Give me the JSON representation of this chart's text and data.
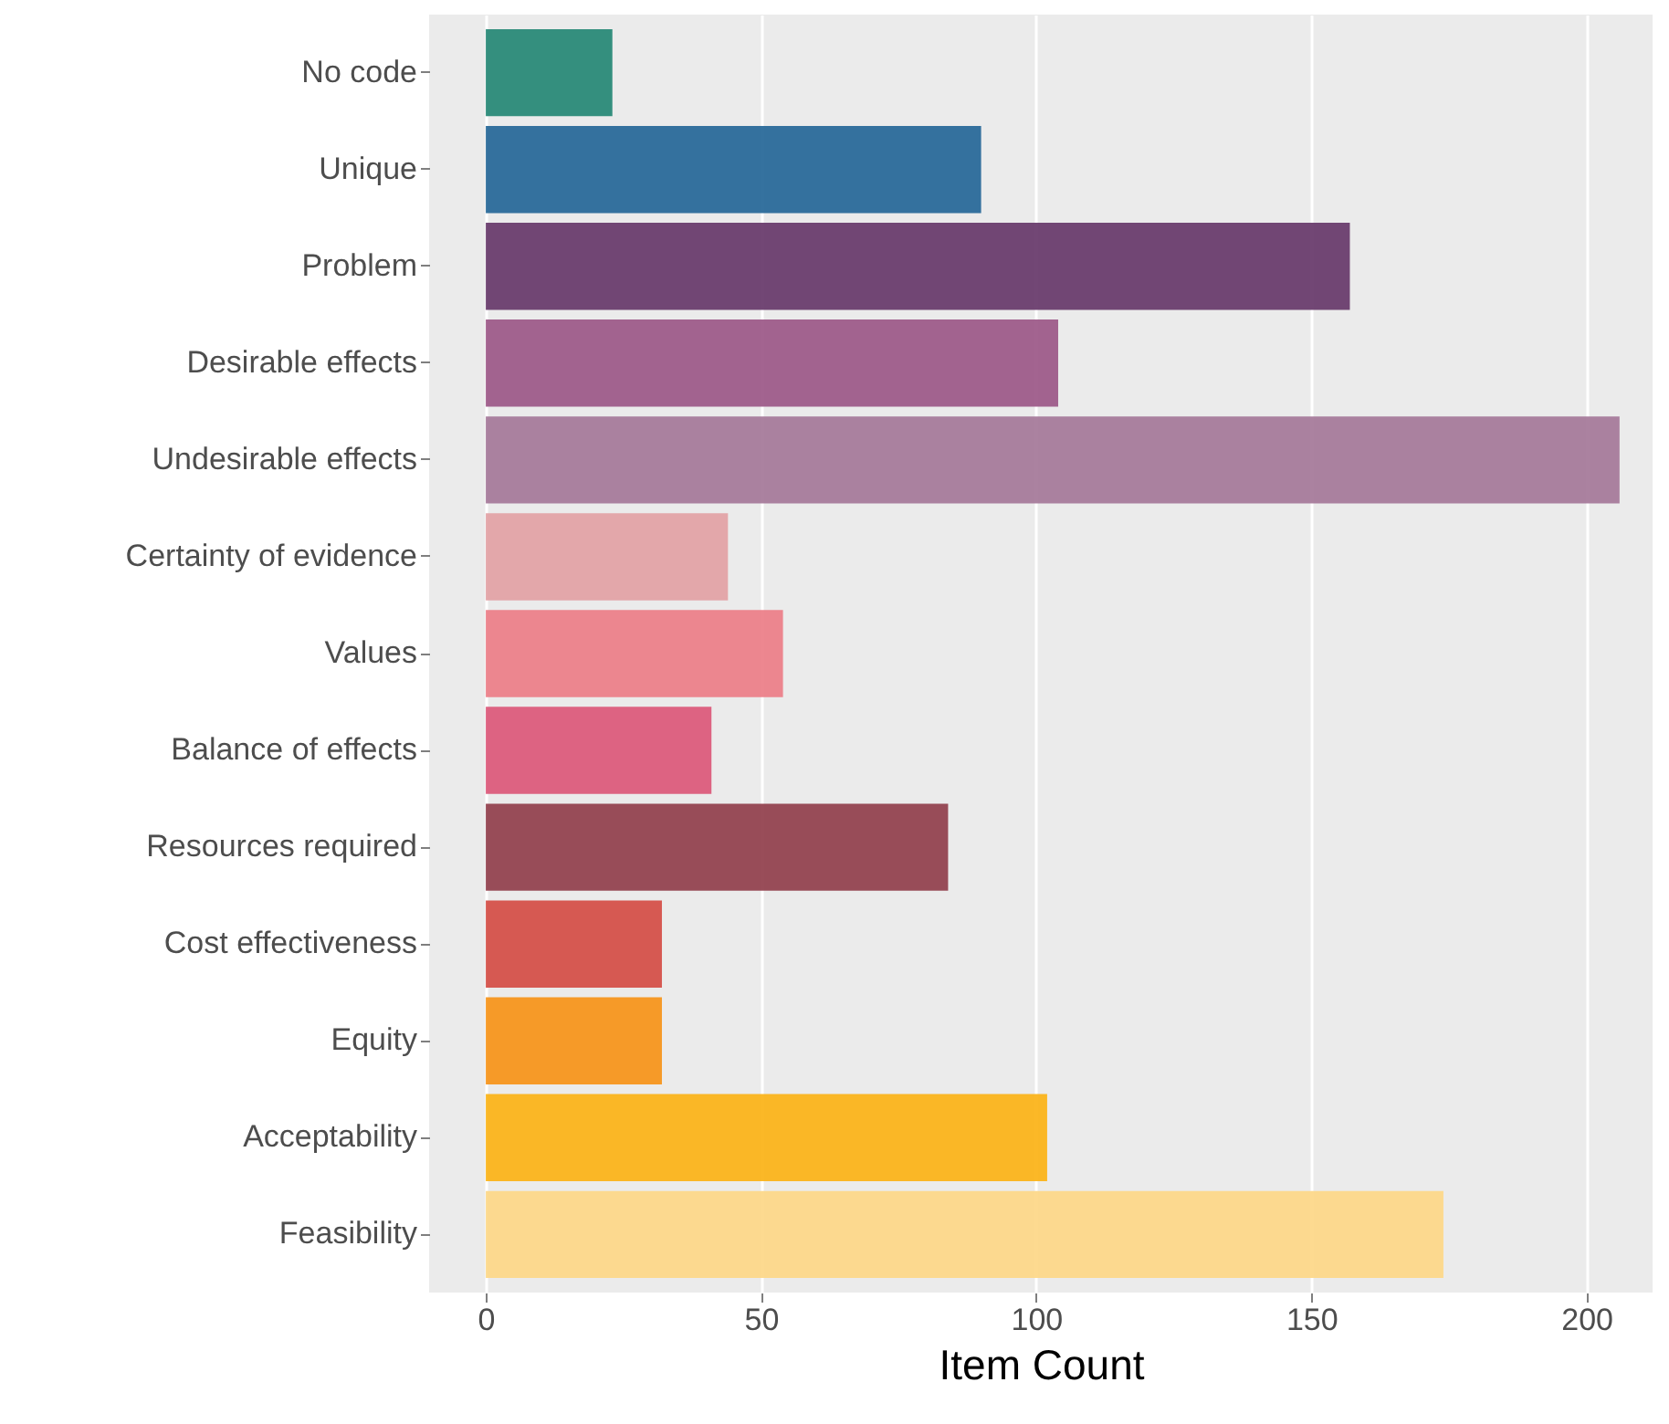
{
  "chart_data": {
    "type": "bar",
    "orientation": "horizontal",
    "xlabel": "Item Count",
    "categories": [
      "No code",
      "Unique",
      "Problem",
      "Desirable effects",
      "Undesirable effects",
      "Certainty of evidence",
      "Values",
      "Balance of effects",
      "Resources required",
      "Cost effectiveness",
      "Equity",
      "Acceptability",
      "Feasibility"
    ],
    "values": [
      23,
      90,
      157,
      104,
      206,
      44,
      54,
      41,
      84,
      32,
      32,
      102,
      174
    ],
    "colors": [
      "#2a8a78",
      "#2a6a9a",
      "#6a3d6e",
      "#9e5c8a",
      "#a67b9b",
      "#e3a3a6",
      "#ec818a",
      "#dc5c7c",
      "#934350",
      "#d5514a",
      "#f7961e",
      "#fbb41b",
      "#fdd88a"
    ],
    "xlim": [
      -10.3,
      212
    ],
    "xticks": [
      0,
      50,
      100,
      150,
      200
    ],
    "grid": true
  }
}
